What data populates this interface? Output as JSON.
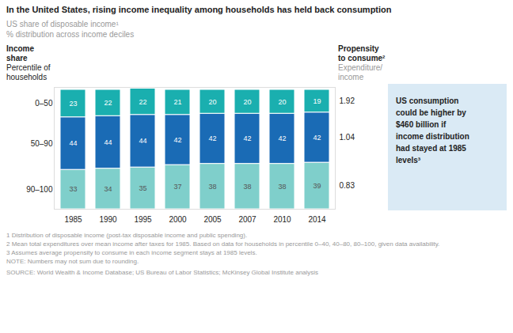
{
  "chart_data": {
    "type": "bar",
    "stacked": true,
    "data_labels": true,
    "tick_labels": "x",
    "title": "In the United States, rising income inequality among households has held back consumption",
    "subtitle": [
      "US share of disposable income¹",
      "% distribution across income deciles"
    ],
    "row_header": "Income\nshare",
    "row_subheader": "Percentile of\nhouseholds",
    "right_header": "Propensity\nto consume²",
    "right_subheader": "Expenditure/\nincome",
    "categories": [
      "1985",
      "1990",
      "1995",
      "2000",
      "2005",
      "2007",
      "2010",
      "2014"
    ],
    "series": [
      {
        "name": "90–100",
        "color": "#7fcfcb",
        "values": [
          33,
          34,
          35,
          37,
          38,
          38,
          38,
          39
        ],
        "propensity": 0.83
      },
      {
        "name": "50–90",
        "color": "#1a6bb5",
        "values": [
          44,
          44,
          44,
          42,
          42,
          42,
          42,
          42
        ],
        "propensity": 1.04
      },
      {
        "name": "0–50",
        "color": "#1aafaf",
        "values": [
          23,
          22,
          22,
          21,
          20,
          20,
          20,
          19
        ],
        "propensity": 1.92
      }
    ],
    "ylim": [
      0,
      102
    ],
    "annotation": "US consumption\ncould be higher by\n$460 billion if\nincome distribution\nhad stayed at 1985\nlevels³",
    "footnotes": [
      "1  Distribution of disposable income (post-tax disposable income and public spending).",
      "2  Mean total expenditures over mean income after taxes for 1985. Based on data for households in percentile 0–40, 40–80, 80–100, given data availability.",
      "3  Assumes average propensity to consume in each income segment stays at 1985 levels.",
      "NOTE: Numbers may not sum due to rounding."
    ],
    "source": "SOURCE:  World Wealth & Income Database; US Bureau of Labor Statistics; McKinsey Global Institute analysis"
  }
}
